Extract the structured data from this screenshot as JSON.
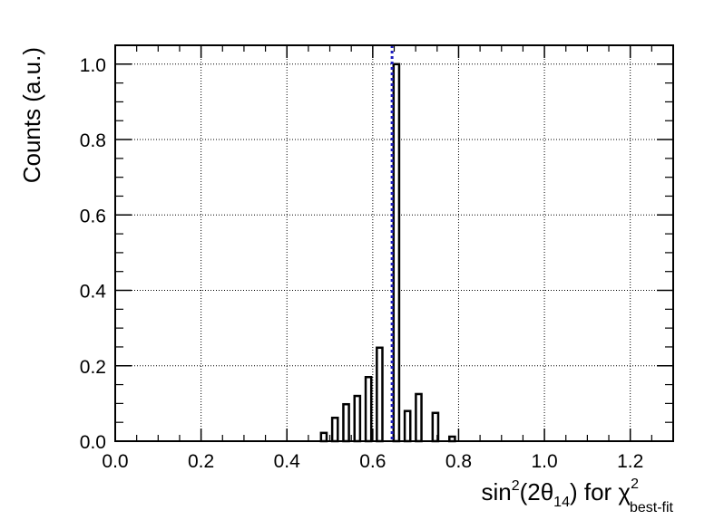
{
  "chart_data": {
    "type": "bar",
    "title": "",
    "ylabel": "Counts (a.u.)",
    "xlabel": {
      "main": "sin",
      "sup": "2",
      "part2": "(2θ",
      "sub": "14",
      "part3": ") for χ",
      "sup2": "2",
      "sub2": "best-fit"
    },
    "xlim": [
      0.0,
      1.3
    ],
    "ylim": [
      0.0,
      1.05
    ],
    "x_ticks": [
      0.0,
      0.2,
      0.4,
      0.6,
      0.8,
      1.0,
      1.2
    ],
    "x_tick_labels": [
      "0.0",
      "0.2",
      "0.4",
      "0.6",
      "0.8",
      "1.0",
      "1.2"
    ],
    "y_ticks": [
      0.0,
      0.2,
      0.4,
      0.6,
      0.8,
      1.0
    ],
    "y_tick_labels": [
      "0.0",
      "0.2",
      "0.4",
      "0.6",
      "0.8",
      "1.0"
    ],
    "grid": true,
    "bin_width": 0.013,
    "bins": [
      {
        "x": 0.486,
        "y": 0.022
      },
      {
        "x": 0.512,
        "y": 0.062
      },
      {
        "x": 0.538,
        "y": 0.098
      },
      {
        "x": 0.564,
        "y": 0.12
      },
      {
        "x": 0.59,
        "y": 0.17
      },
      {
        "x": 0.616,
        "y": 0.248
      },
      {
        "x": 0.655,
        "y": 1.0
      },
      {
        "x": 0.681,
        "y": 0.08
      },
      {
        "x": 0.707,
        "y": 0.125
      },
      {
        "x": 0.746,
        "y": 0.075
      },
      {
        "x": 0.785,
        "y": 0.012
      }
    ],
    "reference_line": {
      "x": 0.645,
      "color": "#1f1fbf",
      "style": "dotted"
    },
    "colors": {
      "bar_stroke": "#000000",
      "bar_fill": "#ffffff",
      "grid": "#000000",
      "reference": "#1f1fbf"
    }
  }
}
